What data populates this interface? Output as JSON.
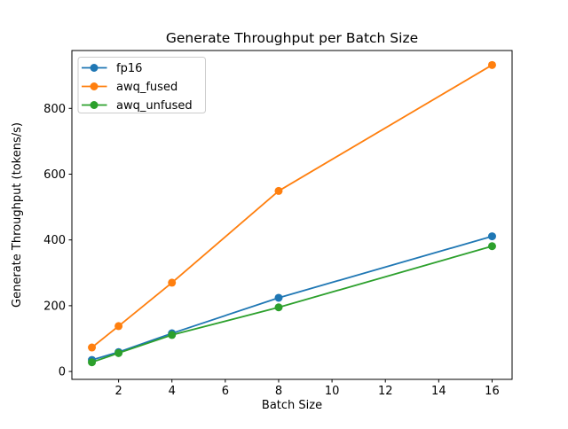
{
  "chart_data": {
    "type": "line",
    "title": "Generate Throughput per Batch Size",
    "xlabel": "Batch Size",
    "ylabel": "Generate Throughput (tokens/s)",
    "x": [
      1,
      2,
      4,
      8,
      16
    ],
    "series": [
      {
        "name": "fp16",
        "color": "#1f77b4",
        "values": [
          35,
          59,
          116,
          224,
          411
        ]
      },
      {
        "name": "awq_fused",
        "color": "#ff7f0e",
        "values": [
          73,
          138,
          270,
          549,
          932
        ]
      },
      {
        "name": "awq_unfused",
        "color": "#2ca02c",
        "values": [
          28,
          56,
          111,
          195,
          381
        ]
      }
    ],
    "xticks": [
      2,
      4,
      6,
      8,
      10,
      12,
      14,
      16
    ],
    "yticks": [
      0,
      200,
      400,
      600,
      800
    ],
    "xlim": [
      0.25,
      16.75
    ],
    "ylim": [
      -24,
      976
    ],
    "grid": false,
    "marker": "circle",
    "legend": {
      "position": "upper left",
      "entries": [
        "fp16",
        "awq_fused",
        "awq_unfused"
      ]
    },
    "axis_color": "#000000",
    "background": "#ffffff"
  }
}
